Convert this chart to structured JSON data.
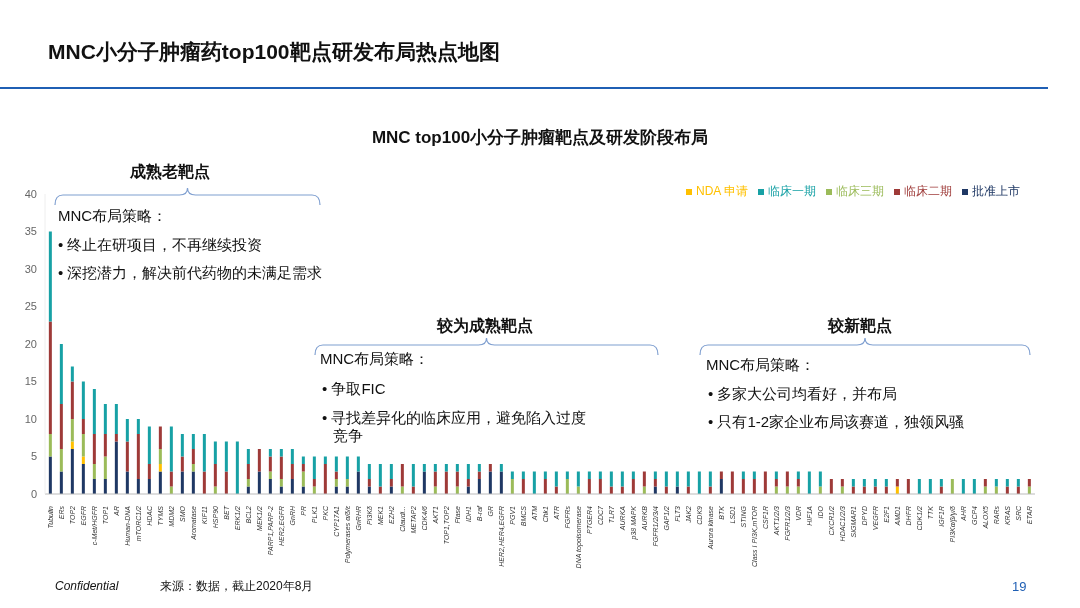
{
  "chart_data": {
    "type": "bar",
    "stacked": true,
    "title": "MNC小分子肿瘤药top100靶点研发布局热点地图",
    "subtitle": "MNC top100小分子肿瘤靶点及研发阶段布局",
    "categories": [
      "Tubulin",
      "ERs",
      "TOP2",
      "EGFR",
      "c-Met/HGFR",
      "TOP1",
      "AR",
      "Human-DNA",
      "mTORC1/2",
      "HDAC",
      "TYMS",
      "MDM2",
      "SMO",
      "Aromatase",
      "KIF11",
      "HSP90",
      "BET",
      "ERK1/2",
      "BCL2",
      "MEK1/2",
      "PARP1,PARP-2",
      "HER2,EGFR",
      "GnRH",
      "PR",
      "PLK1",
      "PKC",
      "CYP17A1",
      "Polymerases α/δ/ε",
      "GnRHR",
      "PI3Kδ",
      "MEK1",
      "EZH2",
      "Claudi...",
      "METAP2",
      "CDK4/6",
      "AKT1",
      "TOP1,TOP2",
      "Ftase",
      "IDH1",
      "B-raf",
      "GR",
      "HER2,HER4,EGFR",
      "PGV1",
      "BMCS",
      "ATM",
      "Chk1",
      "ATR",
      "FGFRs",
      "DNA topoisomerase",
      "PTGER4",
      "CDC7",
      "TLR7",
      "AURKA",
      "p38 MAPK",
      "AURKB",
      "FGFR1/2/3/4",
      "GAP1/2",
      "FLT3",
      "JAK2",
      "CDK9",
      "Aurora kinase",
      "BTK",
      "LSD1",
      "STING",
      "Class I PI3K,mTOR",
      "CSF1R",
      "AKT1/2/3",
      "FGFR1/2/3",
      "VDR",
      "HIF1A",
      "IDO",
      "CXCR1/2",
      "HDAC1/2/3",
      "SIGMAR1",
      "DPYD",
      "VEGFR",
      "E2F1",
      "AMD1",
      "DHFR",
      "CDK1/2",
      "TTK",
      "IGF1R",
      "PI3Kα/β/γ/δ",
      "AHR",
      "GCP4",
      "ALOX5",
      "RARs",
      "KRAS",
      "SRC",
      "ETAR"
    ],
    "series": [
      {
        "name": "批准上市",
        "color": "#1f3864",
        "values": [
          5,
          3,
          6,
          4,
          2,
          2,
          7,
          3,
          2,
          2,
          3,
          0,
          3,
          3,
          0,
          0,
          0,
          0,
          1,
          3,
          2,
          1,
          2,
          1,
          0,
          0,
          1,
          1,
          3,
          1,
          0,
          1,
          0,
          0,
          3,
          0,
          0,
          0,
          1,
          2,
          3,
          3,
          0,
          0,
          0,
          0,
          0,
          0,
          0,
          0,
          0,
          0,
          0,
          0,
          0,
          1,
          0,
          1,
          0,
          0,
          0,
          2,
          0,
          0,
          0,
          0,
          0,
          0,
          0,
          0,
          0,
          0,
          0,
          0,
          0,
          0,
          0,
          0,
          0,
          0,
          0,
          0,
          0,
          0,
          0,
          0,
          0,
          0,
          0,
          0
        ]
      },
      {
        "name": "NDA 申请",
        "color": "#ffc000",
        "values": [
          0,
          0,
          1,
          1,
          0,
          0,
          0,
          0,
          0,
          0,
          1,
          0,
          0,
          0,
          0,
          0,
          0,
          0,
          0,
          0,
          0,
          0,
          0,
          0,
          0,
          0,
          0,
          0,
          0,
          0,
          0,
          0,
          0,
          0,
          0,
          0,
          0,
          0,
          0,
          0,
          0,
          0,
          0,
          0,
          0,
          0,
          0,
          0,
          0,
          0,
          0,
          0,
          0,
          0,
          0,
          0,
          0,
          0,
          0,
          0,
          0,
          0,
          0,
          0,
          0,
          0,
          0,
          0,
          0,
          0,
          0,
          0,
          0,
          0,
          0,
          0,
          0,
          1,
          0,
          0,
          0,
          0,
          0,
          0,
          0,
          0,
          0,
          0,
          0,
          0
        ]
      },
      {
        "name": "临床三期",
        "color": "#9bbb59",
        "values": [
          3,
          3,
          3,
          3,
          2,
          3,
          0,
          0,
          0,
          0,
          2,
          1,
          0,
          1,
          0,
          1,
          0,
          0,
          1,
          0,
          1,
          1,
          0,
          2,
          1,
          0,
          1,
          1,
          0,
          0,
          0,
          0,
          1,
          0,
          0,
          1,
          0,
          1,
          0,
          0,
          0,
          0,
          2,
          0,
          0,
          0,
          0,
          2,
          1,
          0,
          0,
          0,
          0,
          0,
          1,
          0,
          0,
          0,
          0,
          0,
          0,
          0,
          0,
          0,
          0,
          0,
          1,
          1,
          1,
          0,
          1,
          0,
          1,
          0,
          0,
          0,
          0,
          0,
          0,
          0,
          0,
          0,
          2,
          0,
          0,
          1,
          1,
          0,
          0,
          1
        ]
      },
      {
        "name": "临床二期",
        "color": "#9e3a38",
        "values": [
          15,
          6,
          5,
          2,
          4,
          3,
          1,
          4,
          6,
          2,
          3,
          2,
          2,
          2,
          3,
          3,
          3,
          0,
          2,
          3,
          2,
          3,
          2,
          1,
          1,
          4,
          1,
          0,
          0,
          1,
          1,
          1,
          3,
          1,
          0,
          2,
          3,
          2,
          1,
          1,
          1,
          0,
          0,
          2,
          0,
          2,
          1,
          0,
          0,
          2,
          2,
          1,
          1,
          2,
          2,
          1,
          1,
          0,
          1,
          0,
          1,
          1,
          3,
          2,
          2,
          3,
          1,
          2,
          1,
          0,
          0,
          2,
          1,
          1,
          1,
          1,
          1,
          1,
          2,
          0,
          0,
          1,
          0,
          0,
          0,
          1,
          0,
          1,
          1,
          1
        ]
      },
      {
        "name": "临床一期",
        "color": "#17a1a5",
        "values": [
          12,
          8,
          2,
          5,
          6,
          4,
          4,
          3,
          2,
          5,
          0,
          6,
          3,
          2,
          5,
          3,
          4,
          7,
          2,
          0,
          1,
          1,
          2,
          1,
          3,
          1,
          2,
          3,
          2,
          2,
          3,
          2,
          0,
          3,
          1,
          1,
          1,
          1,
          2,
          1,
          0,
          1,
          1,
          1,
          3,
          1,
          2,
          1,
          2,
          1,
          1,
          2,
          2,
          1,
          0,
          1,
          2,
          2,
          2,
          3,
          2,
          0,
          0,
          1,
          1,
          0,
          1,
          0,
          1,
          3,
          2,
          0,
          0,
          1,
          1,
          1,
          1,
          0,
          0,
          2,
          2,
          1,
          0,
          2,
          2,
          0,
          1,
          1,
          1,
          0
        ]
      }
    ],
    "ylim": [
      0,
      40
    ],
    "yticks": [
      0,
      5,
      10,
      15,
      20,
      25,
      30,
      35,
      40
    ],
    "grid": false,
    "legend": "top right",
    "annotations": [
      "成熟老靶点",
      "MNC布局策略：",
      "• 终止在研项目，不再继续投资",
      "• 深挖潜力，解决前代药物的未满足需求",
      "较为成熟靶点",
      "MNC布局策略：",
      "• 争取FIC",
      "• 寻找差异化的临床应用，避免陷入过度竞争",
      "较新靶点",
      "MNC布局策略：",
      "• 多家大公司均看好，并布局",
      "• 只有1-2家企业布局该赛道，独领风骚",
      "Confidential",
      "来源：数据，截止2020年8月",
      "19"
    ]
  }
}
